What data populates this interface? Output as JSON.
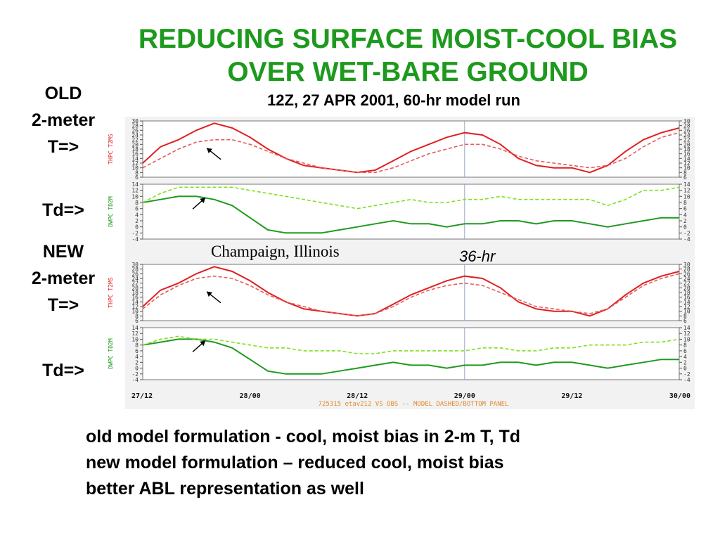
{
  "title": {
    "line1": "REDUCING SURFACE MOIST-COOL BIAS",
    "line2": "OVER WET-BARE GROUND"
  },
  "subtitle": "12Z, 27 APR 2001, 60-hr model run",
  "side_labels": {
    "old": "OLD",
    "old_2m": "2-meter",
    "old_t": "T=>",
    "old_td": "Td=>",
    "new": "NEW",
    "new_2m": "2-meter",
    "new_t": "T=>",
    "new_td": "Td=>"
  },
  "location": "Champaign, Illinois",
  "hr36_label": "36-hr",
  "bullets": [
    "old model formulation -  cool, moist bias in 2-m T, Td",
    "new model formulation –  reduced cool, moist bias",
    "better ABL representation as well"
  ],
  "colors": {
    "title": "#1d9a1d",
    "temp": "#e02020",
    "temp_model": "#e85a5a",
    "dew": "#1f9a1f",
    "dew_model": "#7fe01f",
    "footer": "#e0892a",
    "arrow": "#000000"
  },
  "chart_data": [
    {
      "type": "line",
      "panel": "old-temperature",
      "ylabel": "THPC T2MS",
      "ylim": [
        6,
        30
      ],
      "yticks": [
        6,
        8,
        10,
        12,
        14,
        16,
        18,
        20,
        22,
        24,
        26,
        28,
        30
      ],
      "xlim": [
        0,
        60
      ],
      "x": [
        0,
        2,
        4,
        6,
        8,
        10,
        12,
        14,
        16,
        18,
        20,
        22,
        24,
        26,
        28,
        30,
        32,
        34,
        36,
        38,
        40,
        42,
        44,
        46,
        48,
        50,
        52,
        54,
        56,
        58,
        60
      ],
      "series": [
        {
          "style": "solid",
          "values": [
            12,
            19,
            22,
            26,
            29,
            27,
            23,
            18,
            14,
            11,
            10,
            9,
            8,
            9,
            13,
            17,
            20,
            23,
            25,
            24,
            20,
            14,
            11,
            10,
            10,
            8,
            11,
            17,
            22,
            25,
            27
          ]
        },
        {
          "style": "dashed",
          "values": [
            10,
            14,
            18,
            21,
            22,
            22,
            20,
            17,
            14,
            12,
            10,
            9,
            8,
            8,
            10,
            13,
            16,
            18,
            20,
            20,
            18,
            15,
            13,
            12,
            11,
            10,
            11,
            14,
            19,
            23,
            25
          ]
        }
      ],
      "arrow_at": {
        "x": 7,
        "y": 19
      }
    },
    {
      "type": "line",
      "panel": "old-dewpoint",
      "ylabel": "DWPC TD2M",
      "ylim": [
        -4,
        14
      ],
      "yticks": [
        -4,
        -2,
        0,
        2,
        4,
        6,
        8,
        10,
        12,
        14
      ],
      "xlim": [
        0,
        60
      ],
      "x": [
        0,
        2,
        4,
        6,
        8,
        10,
        12,
        14,
        16,
        18,
        20,
        22,
        24,
        26,
        28,
        30,
        32,
        34,
        36,
        38,
        40,
        42,
        44,
        46,
        48,
        50,
        52,
        54,
        56,
        58,
        60
      ],
      "series": [
        {
          "style": "solid",
          "values": [
            8,
            9,
            10,
            10,
            9,
            7,
            3,
            -1,
            -2,
            -2,
            -2,
            -1,
            0,
            1,
            2,
            1,
            1,
            0,
            1,
            1,
            2,
            2,
            1,
            2,
            2,
            1,
            0,
            1,
            2,
            3,
            3
          ]
        },
        {
          "style": "dashed",
          "values": [
            8,
            11,
            13,
            13,
            13,
            13,
            12,
            11,
            10,
            9,
            8,
            7,
            6,
            7,
            8,
            9,
            8,
            8,
            9,
            9,
            10,
            9,
            9,
            9,
            9,
            9,
            7,
            9,
            12,
            12,
            13
          ]
        }
      ],
      "arrow_at": {
        "x": 7,
        "y": 10
      }
    },
    {
      "type": "line",
      "panel": "new-temperature",
      "ylabel": "THPC T2MS",
      "ylim": [
        6,
        30
      ],
      "yticks": [
        6,
        8,
        10,
        12,
        14,
        16,
        18,
        20,
        22,
        24,
        26,
        28,
        30
      ],
      "xlim": [
        0,
        60
      ],
      "x": [
        0,
        2,
        4,
        6,
        8,
        10,
        12,
        14,
        16,
        18,
        20,
        22,
        24,
        26,
        28,
        30,
        32,
        34,
        36,
        38,
        40,
        42,
        44,
        46,
        48,
        50,
        52,
        54,
        56,
        58,
        60
      ],
      "series": [
        {
          "style": "solid",
          "values": [
            12,
            19,
            22,
            26,
            29,
            27,
            23,
            18,
            14,
            11,
            10,
            9,
            8,
            9,
            13,
            17,
            20,
            23,
            25,
            24,
            20,
            14,
            11,
            10,
            10,
            8,
            11,
            17,
            22,
            25,
            27
          ]
        },
        {
          "style": "dashed",
          "values": [
            11,
            17,
            21,
            24,
            25,
            24,
            21,
            17,
            14,
            12,
            10,
            9,
            8,
            9,
            12,
            16,
            19,
            21,
            22,
            21,
            18,
            15,
            12,
            11,
            10,
            9,
            11,
            16,
            21,
            24,
            26
          ]
        }
      ],
      "arrow_at": {
        "x": 7,
        "y": 19
      }
    },
    {
      "type": "line",
      "panel": "new-dewpoint",
      "ylabel": "DWPC TD2M",
      "ylim": [
        -4,
        14
      ],
      "yticks": [
        -4,
        -2,
        0,
        2,
        4,
        6,
        8,
        10,
        12,
        14
      ],
      "xlim": [
        0,
        60
      ],
      "x": [
        0,
        2,
        4,
        6,
        8,
        10,
        12,
        14,
        16,
        18,
        20,
        22,
        24,
        26,
        28,
        30,
        32,
        34,
        36,
        38,
        40,
        42,
        44,
        46,
        48,
        50,
        52,
        54,
        56,
        58,
        60
      ],
      "series": [
        {
          "style": "solid",
          "values": [
            8,
            9,
            10,
            10,
            9,
            7,
            3,
            -1,
            -2,
            -2,
            -2,
            -1,
            0,
            1,
            2,
            1,
            1,
            0,
            1,
            1,
            2,
            2,
            1,
            2,
            2,
            1,
            0,
            1,
            2,
            3,
            3
          ]
        },
        {
          "style": "dashed",
          "values": [
            8,
            10,
            11,
            10,
            10,
            9,
            8,
            7,
            7,
            6,
            6,
            6,
            5,
            5,
            6,
            6,
            6,
            6,
            6,
            7,
            7,
            6,
            6,
            7,
            7,
            8,
            8,
            8,
            9,
            9,
            10
          ]
        }
      ],
      "arrow_at": {
        "x": 7,
        "y": 10
      }
    }
  ],
  "x_axis": {
    "ticks": [
      {
        "x": 0,
        "label": "27/12"
      },
      {
        "x": 12,
        "label": "28/00"
      },
      {
        "x": 24,
        "label": "28/12"
      },
      {
        "x": 36,
        "label": "29/00"
      },
      {
        "x": 48,
        "label": "29/12"
      },
      {
        "x": 60,
        "label": "30/00"
      }
    ],
    "center_line_x": 36,
    "caption": "725315  etav212 VS OBS -- MODEL DASHED/BOTTOM PANEL"
  }
}
